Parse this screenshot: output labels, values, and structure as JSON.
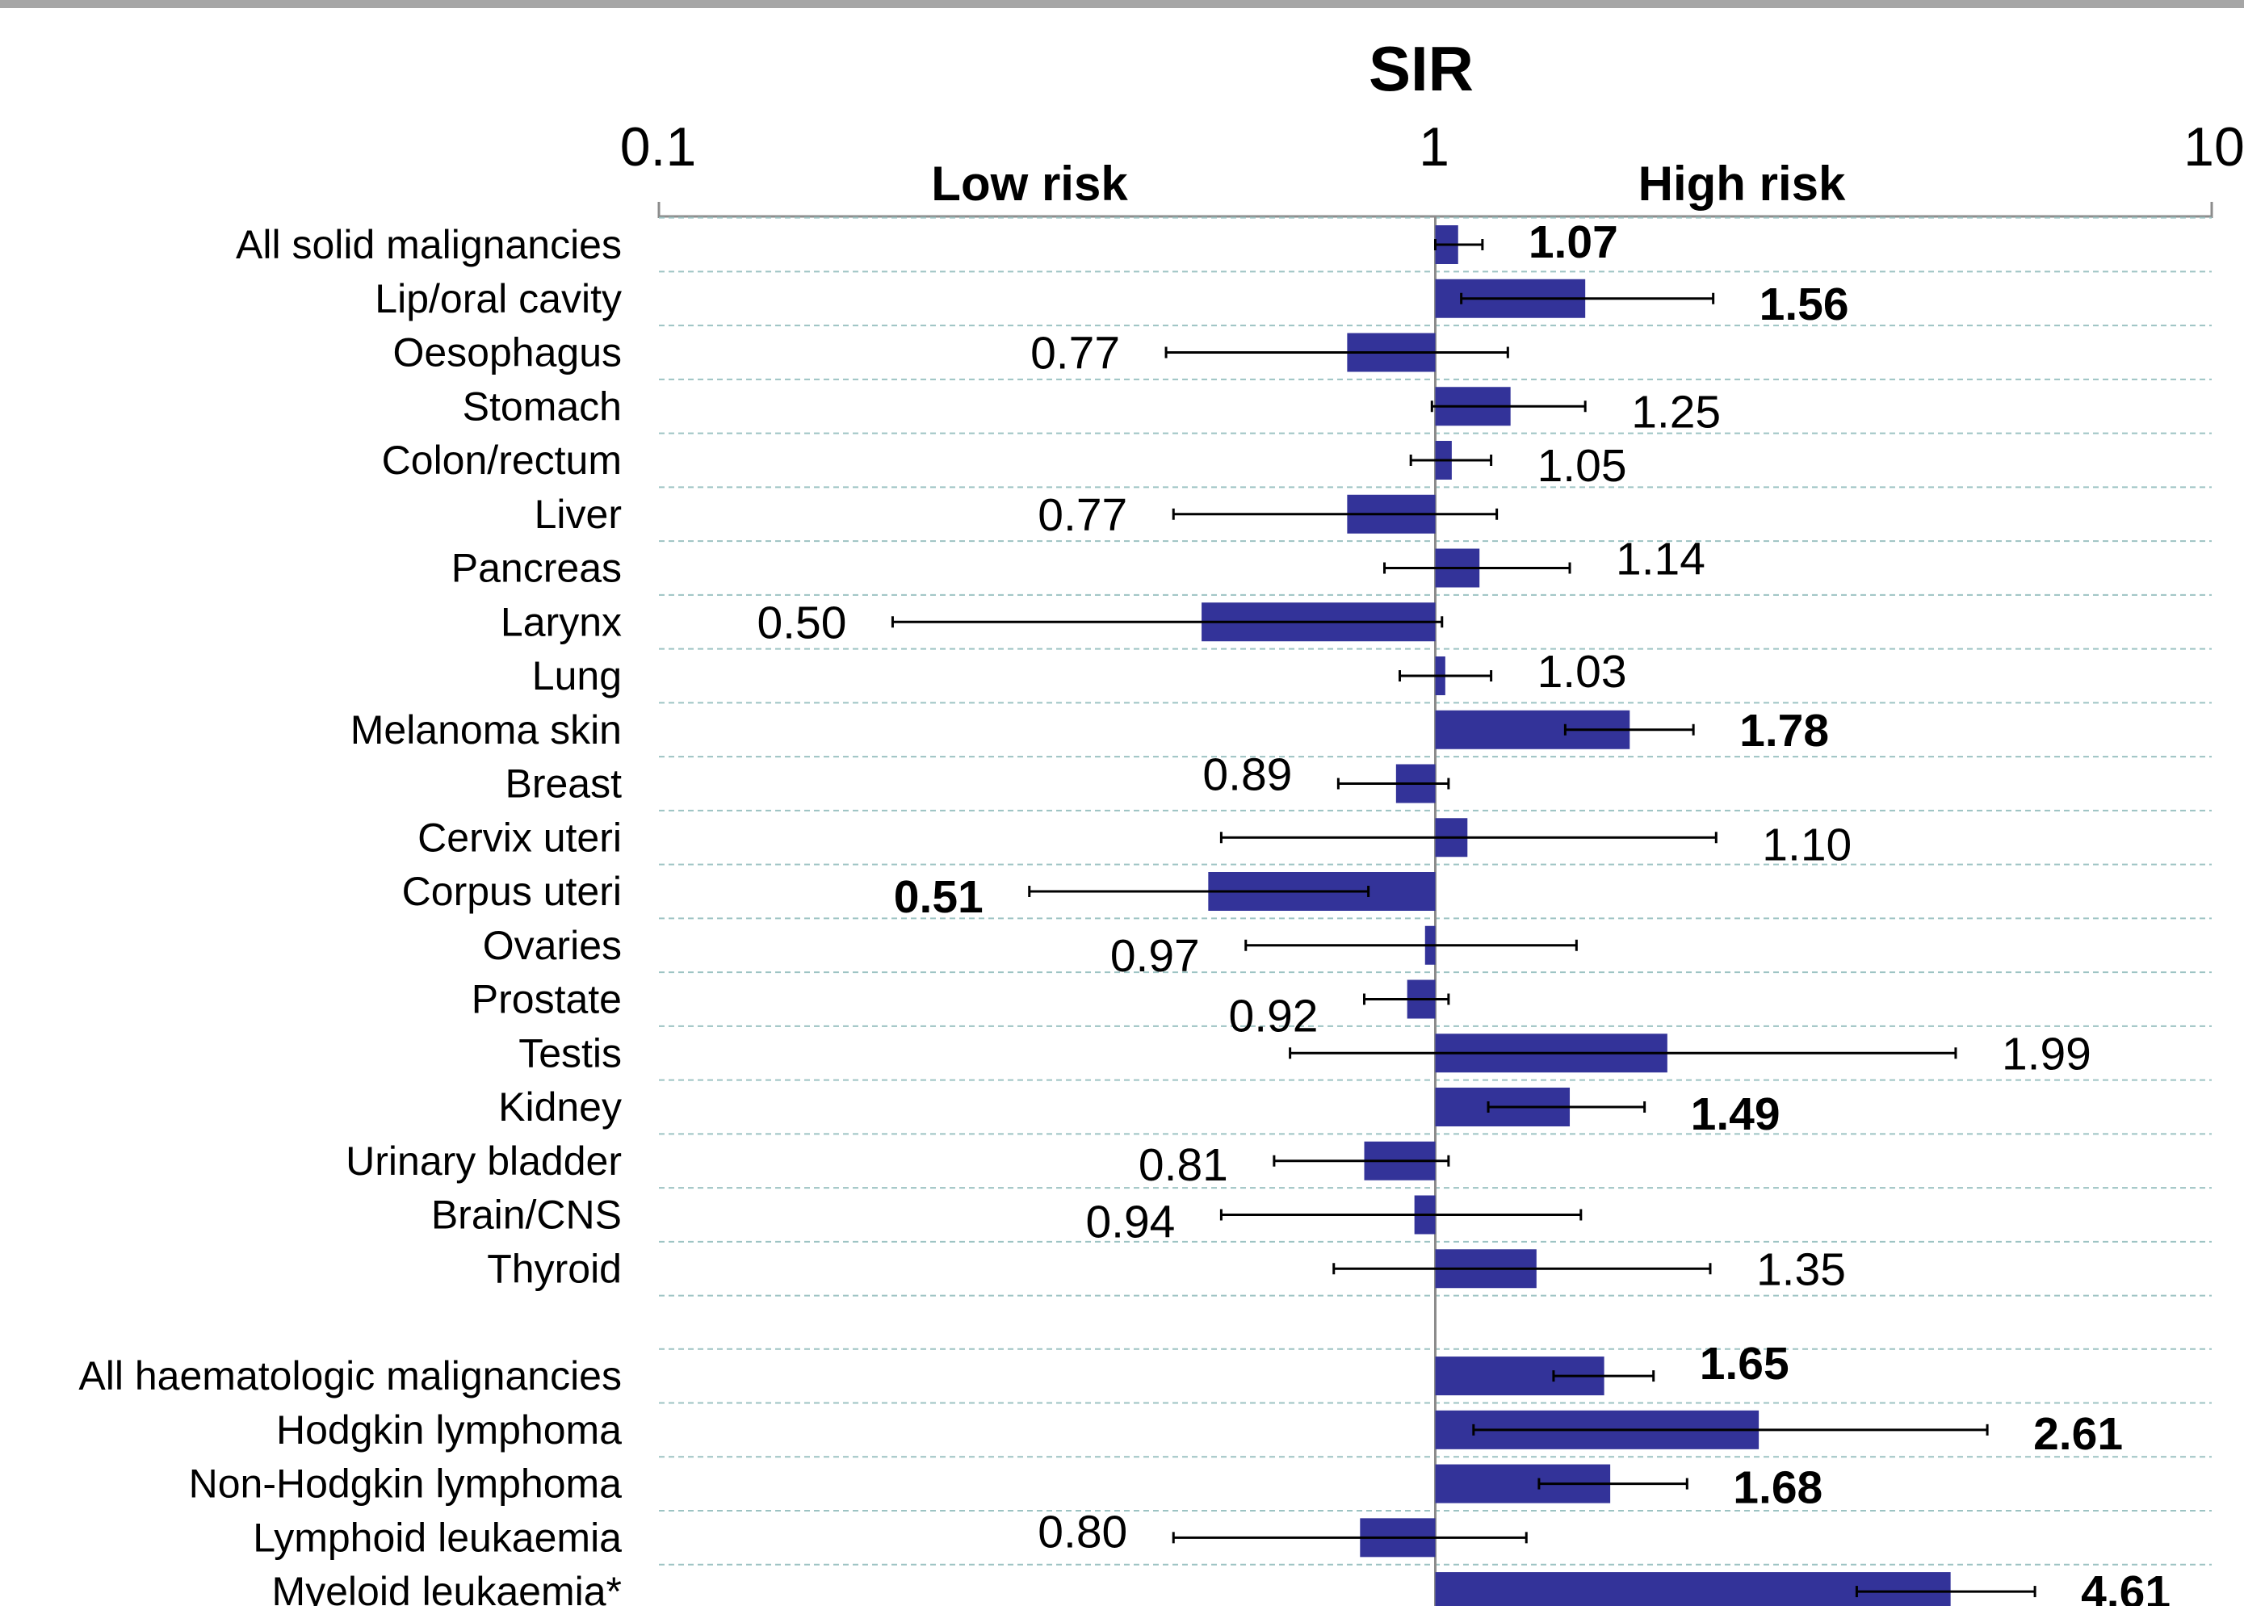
{
  "chart_data": {
    "type": "bar",
    "title": "SIR",
    "x_scale": "log",
    "xlim": [
      0.1,
      10
    ],
    "x_ticks": [
      "0.1",
      "1",
      "10"
    ],
    "reference_line": 1,
    "region_labels": {
      "low": "Low risk",
      "high": "High risk"
    },
    "bar_color": "#333399",
    "grid": "horizontal dashed",
    "categories": [
      {
        "name": "All solid malignancies",
        "value": 1.07,
        "label": "1.07",
        "bold": true,
        "ci": [
          1.0,
          1.15
        ],
        "label_offset": -2
      },
      {
        "name": "Lip/oral cavity",
        "value": 1.56,
        "label": "1.56",
        "bold": true,
        "ci": [
          1.08,
          2.28
        ],
        "label_offset": 3
      },
      {
        "name": "Oesophagus",
        "value": 0.77,
        "label": "0.77",
        "bold": false,
        "ci": [
          0.45,
          1.24
        ],
        "label_offset": 0
      },
      {
        "name": "Stomach",
        "value": 1.25,
        "label": "1.25",
        "bold": false,
        "ci": [
          0.99,
          1.56
        ],
        "label_offset": 3
      },
      {
        "name": "Colon/rectum",
        "value": 1.05,
        "label": "1.05",
        "bold": false,
        "ci": [
          0.93,
          1.18
        ],
        "label_offset": 3
      },
      {
        "name": "Liver",
        "value": 0.77,
        "label": "0.77",
        "bold": false,
        "ci": [
          0.46,
          1.2
        ],
        "label_offset": 0
      },
      {
        "name": "Pancreas",
        "value": 1.14,
        "label": "1.14",
        "bold": false,
        "ci": [
          0.86,
          1.49
        ],
        "label_offset": -6
      },
      {
        "name": "Larynx",
        "value": 0.5,
        "label": "0.50",
        "bold": false,
        "ci": [
          0.2,
          1.02
        ],
        "label_offset": 0
      },
      {
        "name": "Lung",
        "value": 1.03,
        "label": "1.03",
        "bold": false,
        "ci": [
          0.9,
          1.18
        ],
        "label_offset": -3
      },
      {
        "name": "Melanoma skin",
        "value": 1.78,
        "label": "1.78",
        "bold": true,
        "ci": [
          1.47,
          2.15
        ],
        "label_offset": 0
      },
      {
        "name": "Breast",
        "value": 0.89,
        "label": "0.89",
        "bold": false,
        "ci": [
          0.75,
          1.04
        ],
        "label_offset": -6
      },
      {
        "name": "Cervix uteri",
        "value": 1.1,
        "label": "1.10",
        "bold": false,
        "ci": [
          0.53,
          2.3
        ],
        "label_offset": 4
      },
      {
        "name": "Corpus uteri",
        "value": 0.51,
        "label": "0.51",
        "bold": true,
        "ci": [
          0.3,
          0.82
        ],
        "label_offset": 3
      },
      {
        "name": "Ovaries",
        "value": 0.97,
        "label": "0.97",
        "bold": false,
        "ci": [
          0.57,
          1.52
        ],
        "label_offset": 6
      },
      {
        "name": "Prostate",
        "value": 0.92,
        "label": "0.92",
        "bold": false,
        "ci": [
          0.81,
          1.04
        ],
        "label_offset": 10
      },
      {
        "name": "Testis",
        "value": 1.99,
        "label": "1.99",
        "bold": false,
        "ci": [
          0.65,
          4.68
        ],
        "label_offset": 0
      },
      {
        "name": "Kidney",
        "value": 1.49,
        "label": "1.49",
        "bold": true,
        "ci": [
          1.17,
          1.86
        ],
        "label_offset": 4
      },
      {
        "name": "Urinary bladder",
        "value": 0.81,
        "label": "0.81",
        "bold": false,
        "ci": [
          0.62,
          1.04
        ],
        "label_offset": 2
      },
      {
        "name": "Brain/CNS",
        "value": 0.94,
        "label": "0.94",
        "bold": false,
        "ci": [
          0.53,
          1.54
        ],
        "label_offset": 4
      },
      {
        "name": "Thyroid",
        "value": 1.35,
        "label": "1.35",
        "bold": false,
        "ci": [
          0.74,
          2.26
        ],
        "label_offset": 0
      },
      {
        "name": "All haematologic malignancies",
        "value": 1.65,
        "label": "1.65",
        "bold": true,
        "ci": [
          1.42,
          1.91
        ],
        "label_offset": -8
      },
      {
        "name": "Hodgkin lymphoma",
        "value": 2.61,
        "label": "2.61",
        "bold": true,
        "ci": [
          1.12,
          5.14
        ],
        "label_offset": 2
      },
      {
        "name": "Non-Hodgkin lymphoma",
        "value": 1.68,
        "label": "1.68",
        "bold": true,
        "ci": [
          1.36,
          2.11
        ],
        "label_offset": 2
      },
      {
        "name": "Lymphoid leukaemia",
        "value": 0.8,
        "label": "0.80",
        "bold": false,
        "ci": [
          0.46,
          1.31
        ],
        "label_offset": -4
      },
      {
        "name": "Myeloid leukaemia*",
        "value": 4.61,
        "label": "4.61",
        "bold": true,
        "ci": [
          3.49,
          5.92
        ],
        "label_offset": 0
      }
    ]
  }
}
